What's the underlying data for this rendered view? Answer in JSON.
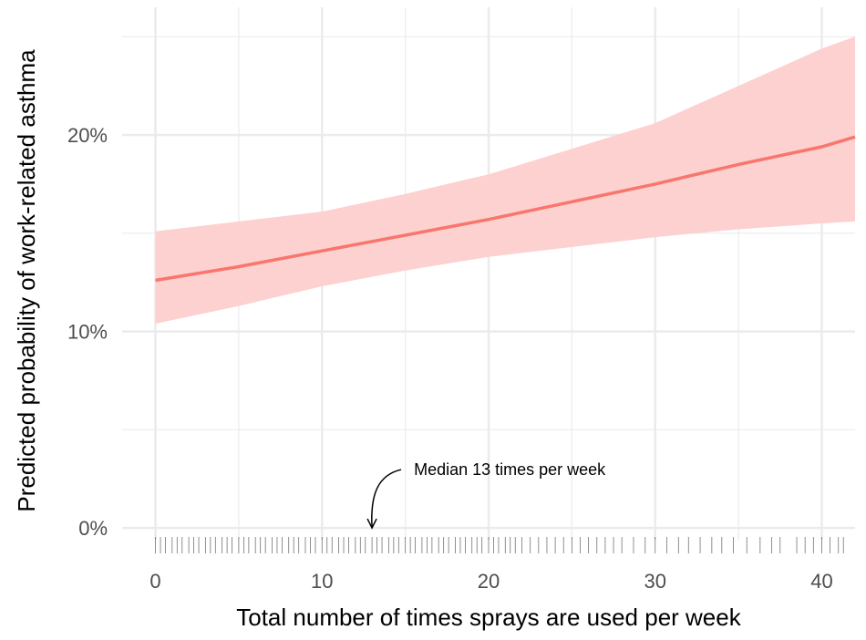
{
  "chart_data": {
    "type": "line",
    "xlabel": "Total number of times sprays are used per week",
    "ylabel": "Predicted probability of work-related asthma",
    "xlim": [
      -2,
      42
    ],
    "ylim": [
      -0.6,
      26.5
    ],
    "x_major_ticks": [
      0,
      10,
      20,
      30,
      40
    ],
    "x_minor_ticks": [
      5,
      15,
      25,
      35
    ],
    "y_major_ticks": [
      0,
      10,
      20
    ],
    "y_minor_ticks": [
      5,
      15,
      25
    ],
    "x_tick_labels": [
      "0",
      "10",
      "20",
      "30",
      "40"
    ],
    "y_tick_labels": [
      "0%",
      "10%",
      "20%"
    ],
    "grid": true,
    "colors": {
      "line": "#f8766d",
      "ribbon": "#fcd1cf",
      "grid": "#ebebeb",
      "rug": "#000000"
    },
    "series": [
      {
        "x": [
          0,
          5,
          10,
          15,
          20,
          25,
          30,
          35,
          40,
          42
        ],
        "y": [
          12.6,
          13.3,
          14.1,
          14.9,
          15.7,
          16.6,
          17.5,
          18.5,
          19.4,
          19.9
        ],
        "lower": [
          10.4,
          11.3,
          12.3,
          13.1,
          13.8,
          14.3,
          14.8,
          15.2,
          15.5,
          15.6
        ],
        "upper": [
          15.1,
          15.6,
          16.1,
          17.0,
          18.0,
          19.3,
          20.6,
          22.5,
          24.4,
          25.0
        ]
      }
    ],
    "rug_x": [
      0,
      0.3,
      0.6,
      1,
      1.3,
      1.6,
      2,
      2.3,
      2.6,
      3,
      3.3,
      3.6,
      4,
      4.3,
      4.6,
      5,
      5.3,
      5.6,
      6,
      6.3,
      6.6,
      7,
      7.3,
      7.6,
      8,
      8.3,
      8.6,
      9,
      9.3,
      9.6,
      10,
      10.3,
      10.6,
      11,
      11.3,
      11.6,
      12,
      12.3,
      12.6,
      13,
      13.3,
      13.6,
      14,
      14.3,
      14.6,
      15,
      15.3,
      15.6,
      16,
      16.3,
      16.6,
      17,
      17.3,
      17.6,
      18,
      18.3,
      18.6,
      19,
      19.3,
      19.6,
      20,
      20.3,
      20.6,
      21,
      21.3,
      21.6,
      22,
      22.5,
      23,
      23.5,
      24,
      24.5,
      25,
      25.5,
      26,
      26.5,
      27,
      27.5,
      28,
      28.7,
      29.4,
      30,
      30.7,
      31.4,
      32,
      32.7,
      33.4,
      34,
      34.7,
      35.5,
      36.3,
      37,
      37.5,
      38.5,
      39,
      39.5,
      40,
      40.5,
      41,
      41.3
    ],
    "annotation": {
      "text": "Median 13 times per week",
      "x": 13
    }
  }
}
